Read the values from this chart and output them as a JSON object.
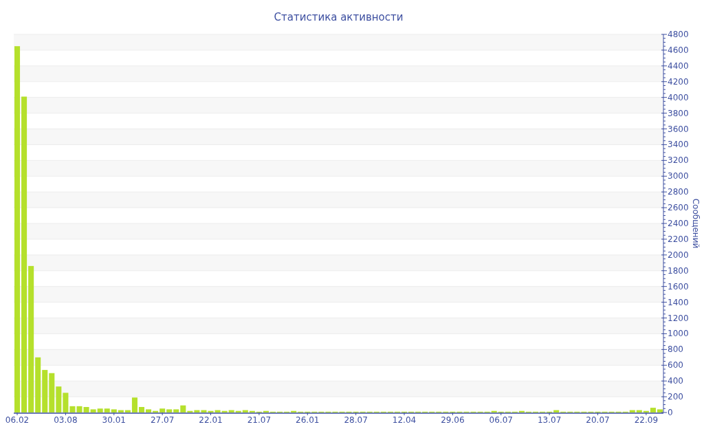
{
  "chart_data": {
    "type": "bar",
    "title": "Статистика активности",
    "ylabel": "Сообщений",
    "categories": [
      "06.02",
      null,
      null,
      null,
      null,
      null,
      null,
      "03.08",
      null,
      null,
      null,
      null,
      null,
      null,
      "30.01",
      null,
      null,
      null,
      null,
      null,
      null,
      "27.07",
      null,
      null,
      null,
      null,
      null,
      null,
      "22.01",
      null,
      null,
      null,
      null,
      null,
      null,
      "21.07",
      null,
      null,
      null,
      null,
      null,
      null,
      "26.01",
      null,
      null,
      null,
      null,
      null,
      null,
      "28.07",
      null,
      null,
      null,
      null,
      null,
      null,
      "12.04",
      null,
      null,
      null,
      null,
      null,
      null,
      "29.06",
      null,
      null,
      null,
      null,
      null,
      null,
      "06.07",
      null,
      null,
      null,
      null,
      null,
      null,
      "13.07",
      null,
      null,
      null,
      null,
      null,
      null,
      "20.07",
      null,
      null,
      null,
      null,
      null,
      null,
      "22.09",
      null,
      null
    ],
    "values": [
      4650,
      4010,
      1860,
      700,
      540,
      500,
      330,
      250,
      80,
      80,
      70,
      40,
      50,
      50,
      40,
      30,
      30,
      190,
      70,
      40,
      20,
      50,
      40,
      40,
      90,
      20,
      30,
      30,
      20,
      30,
      20,
      30,
      20,
      30,
      20,
      10,
      20,
      10,
      10,
      10,
      20,
      10,
      10,
      10,
      10,
      10,
      10,
      10,
      10,
      10,
      10,
      10,
      10,
      10,
      10,
      10,
      10,
      10,
      10,
      10,
      10,
      10,
      10,
      10,
      10,
      10,
      10,
      10,
      10,
      20,
      10,
      10,
      10,
      20,
      10,
      10,
      10,
      10,
      30,
      10,
      10,
      10,
      10,
      10,
      10,
      10,
      10,
      10,
      10,
      30,
      30,
      20,
      60,
      40
    ],
    "color": "#b5e02c",
    "ylim": [
      0,
      4800
    ],
    "yticks": [
      0,
      200,
      400,
      600,
      800,
      1000,
      1200,
      1400,
      1600,
      1800,
      2000,
      2200,
      2400,
      2600,
      2800,
      3000,
      3200,
      3400,
      3600,
      3800,
      4000,
      4200,
      4400,
      4600,
      4800
    ],
    "grid": true
  }
}
